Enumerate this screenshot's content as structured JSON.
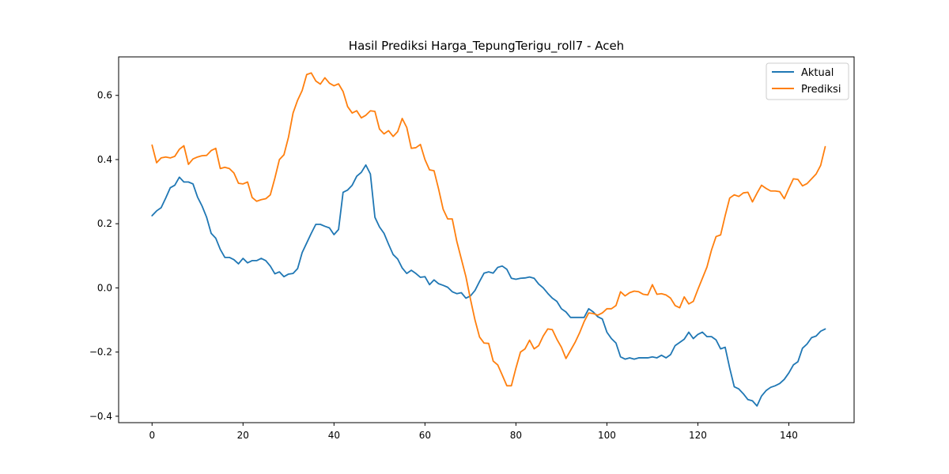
{
  "chart_data": {
    "type": "line",
    "title": "Hasil Prediksi Harga_TepungTerigu_roll7 - Aceh",
    "xlabel": "",
    "ylabel": "",
    "xlim": [
      -7.35,
      154.35
    ],
    "ylim": [
      -0.42,
      0.72
    ],
    "xticks": [
      0,
      20,
      40,
      60,
      80,
      100,
      120,
      140
    ],
    "yticks": [
      -0.4,
      -0.2,
      0.0,
      0.2,
      0.4,
      0.6
    ],
    "xtick_labels": [
      "0",
      "20",
      "40",
      "60",
      "80",
      "100",
      "120",
      "140"
    ],
    "ytick_labels": [
      "−0.4",
      "−0.2",
      "0.0",
      "0.2",
      "0.4",
      "0.6"
    ],
    "grid": false,
    "legend_position": "top-right",
    "series": [
      {
        "name": "Aktual",
        "color": "#1f77b4",
        "values": [
          0.225,
          0.24,
          0.25,
          0.28,
          0.312,
          0.32,
          0.345,
          0.33,
          0.33,
          0.324,
          0.283,
          0.255,
          0.22,
          0.17,
          0.155,
          0.12,
          0.095,
          0.095,
          0.088,
          0.075,
          0.092,
          0.078,
          0.085,
          0.085,
          0.092,
          0.085,
          0.068,
          0.044,
          0.05,
          0.035,
          0.043,
          0.045,
          0.06,
          0.11,
          0.14,
          0.17,
          0.198,
          0.198,
          0.192,
          0.187,
          0.166,
          0.182,
          0.298,
          0.305,
          0.32,
          0.348,
          0.36,
          0.383,
          0.355,
          0.22,
          0.19,
          0.17,
          0.136,
          0.104,
          0.09,
          0.062,
          0.045,
          0.055,
          0.045,
          0.033,
          0.035,
          0.01,
          0.025,
          0.013,
          0.008,
          0.002,
          -0.012,
          -0.018,
          -0.015,
          -0.032,
          -0.025,
          -0.008,
          0.02,
          0.046,
          0.05,
          0.046,
          0.064,
          0.068,
          0.058,
          0.03,
          0.027,
          0.03,
          0.031,
          0.034,
          0.03,
          0.012,
          0.0,
          -0.017,
          -0.032,
          -0.042,
          -0.065,
          -0.075,
          -0.092,
          -0.092,
          -0.092,
          -0.092,
          -0.065,
          -0.075,
          -0.09,
          -0.097,
          -0.138,
          -0.158,
          -0.172,
          -0.215,
          -0.222,
          -0.218,
          -0.222,
          -0.218,
          -0.218,
          -0.218,
          -0.215,
          -0.218,
          -0.21,
          -0.218,
          -0.208,
          -0.18,
          -0.17,
          -0.16,
          -0.138,
          -0.158,
          -0.145,
          -0.138,
          -0.152,
          -0.152,
          -0.162,
          -0.19,
          -0.185,
          -0.25,
          -0.308,
          -0.315,
          -0.33,
          -0.348,
          -0.352,
          -0.368,
          -0.337,
          -0.32,
          -0.31,
          -0.305,
          -0.298,
          -0.285,
          -0.265,
          -0.24,
          -0.23,
          -0.188,
          -0.175,
          -0.155,
          -0.15,
          -0.135,
          -0.128
        ]
      },
      {
        "name": "Prediksi",
        "color": "#ff7f0e",
        "values": [
          0.445,
          0.39,
          0.405,
          0.408,
          0.405,
          0.41,
          0.432,
          0.443,
          0.385,
          0.402,
          0.408,
          0.412,
          0.413,
          0.428,
          0.435,
          0.372,
          0.376,
          0.372,
          0.358,
          0.326,
          0.324,
          0.33,
          0.282,
          0.27,
          0.275,
          0.278,
          0.29,
          0.342,
          0.4,
          0.415,
          0.47,
          0.545,
          0.585,
          0.615,
          0.665,
          0.67,
          0.645,
          0.635,
          0.655,
          0.638,
          0.63,
          0.636,
          0.612,
          0.565,
          0.545,
          0.552,
          0.53,
          0.538,
          0.552,
          0.55,
          0.495,
          0.48,
          0.49,
          0.472,
          0.487,
          0.528,
          0.5,
          0.435,
          0.437,
          0.447,
          0.4,
          0.368,
          0.365,
          0.308,
          0.245,
          0.215,
          0.215,
          0.145,
          0.09,
          0.035,
          -0.035,
          -0.1,
          -0.153,
          -0.172,
          -0.173,
          -0.228,
          -0.24,
          -0.272,
          -0.305,
          -0.305,
          -0.25,
          -0.2,
          -0.19,
          -0.163,
          -0.19,
          -0.18,
          -0.15,
          -0.128,
          -0.13,
          -0.16,
          -0.185,
          -0.22,
          -0.195,
          -0.17,
          -0.14,
          -0.105,
          -0.078,
          -0.08,
          -0.085,
          -0.078,
          -0.065,
          -0.065,
          -0.055,
          -0.012,
          -0.025,
          -0.015,
          -0.01,
          -0.012,
          -0.02,
          -0.022,
          0.01,
          -0.02,
          -0.018,
          -0.022,
          -0.032,
          -0.055,
          -0.062,
          -0.028,
          -0.05,
          -0.042,
          -0.005,
          0.03,
          0.065,
          0.118,
          0.16,
          0.165,
          0.225,
          0.28,
          0.29,
          0.285,
          0.296,
          0.298,
          0.268,
          0.295,
          0.32,
          0.31,
          0.302,
          0.302,
          0.3,
          0.278,
          0.31,
          0.34,
          0.338,
          0.318,
          0.325,
          0.34,
          0.355,
          0.382,
          0.44
        ]
      }
    ]
  }
}
